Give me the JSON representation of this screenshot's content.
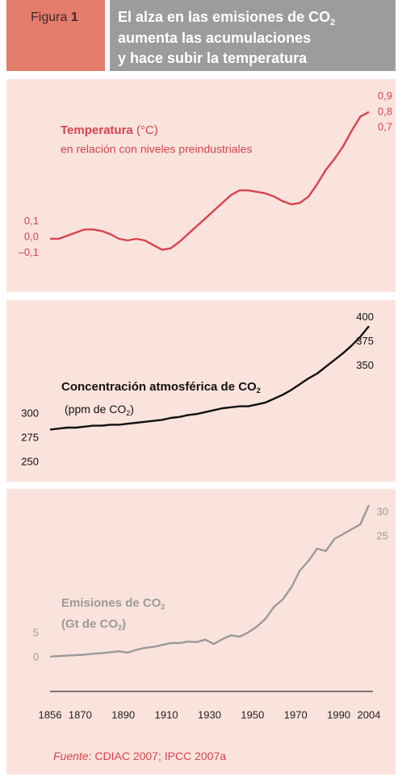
{
  "header": {
    "label": "Figura",
    "number": "1",
    "title": {
      "line1": "El alza en las emisiones de CO",
      "line1_sub": "2",
      "line2": "aumenta las acumulaciones",
      "line3": "y hace subir la temperatura"
    }
  },
  "source": {
    "label": "Fuente:",
    "text": "CDIAC 2007; IPCC 2007a"
  },
  "chart_data": [
    {
      "type": "line",
      "label": "Temperatura",
      "unit": "(°C)",
      "note": "en relación con niveles preindustriales",
      "color": "#d8434e",
      "x": [
        1856,
        1860,
        1864,
        1868,
        1872,
        1876,
        1880,
        1884,
        1888,
        1892,
        1896,
        1900,
        1904,
        1908,
        1912,
        1916,
        1920,
        1924,
        1928,
        1932,
        1936,
        1940,
        1944,
        1948,
        1952,
        1956,
        1960,
        1964,
        1968,
        1972,
        1976,
        1980,
        1984,
        1988,
        1992,
        1996,
        2000,
        2004
      ],
      "values": [
        -0.01,
        -0.01,
        0.01,
        0.03,
        0.05,
        0.05,
        0.04,
        0.02,
        -0.01,
        -0.02,
        -0.01,
        -0.02,
        -0.05,
        -0.08,
        -0.07,
        -0.03,
        0.02,
        0.07,
        0.12,
        0.17,
        0.22,
        0.27,
        0.3,
        0.3,
        0.29,
        0.28,
        0.26,
        0.23,
        0.21,
        0.22,
        0.26,
        0.34,
        0.43,
        0.5,
        0.58,
        0.68,
        0.77,
        0.8
      ],
      "xlim": [
        1856,
        2004
      ],
      "ylim": [
        -0.35,
        1.0
      ],
      "yticks": [
        {
          "value": 0.1,
          "label": "0,1"
        },
        {
          "value": 0.0,
          "label": "0,0"
        },
        {
          "value": -0.1,
          "label": "–0,1"
        }
      ],
      "y2lim": [
        -0.35,
        1.0
      ],
      "y2ticks": [
        {
          "value": 0.9,
          "label": "0,9"
        },
        {
          "value": 0.8,
          "label": "0,8"
        },
        {
          "value": 0.7,
          "label": "0,7"
        }
      ]
    },
    {
      "type": "line",
      "label": "Concentración atmosférica de CO",
      "label_sub": "2",
      "unit": "(ppm de CO",
      "unit_sub": "2",
      "unit_close": ")",
      "color": "#111111",
      "x": [
        1856,
        1860,
        1864,
        1868,
        1872,
        1876,
        1880,
        1884,
        1888,
        1892,
        1896,
        1900,
        1904,
        1908,
        1912,
        1916,
        1920,
        1924,
        1928,
        1932,
        1936,
        1940,
        1944,
        1948,
        1952,
        1956,
        1960,
        1964,
        1968,
        1972,
        1976,
        1980,
        1984,
        1988,
        1992,
        1996,
        2000,
        2004
      ],
      "values": [
        284,
        285,
        286,
        286,
        287,
        288,
        288,
        289,
        289,
        290,
        291,
        292,
        293,
        294,
        296,
        297,
        299,
        300,
        302,
        304,
        306,
        307,
        308,
        308,
        310,
        312,
        316,
        320,
        325,
        331,
        337,
        342,
        349,
        356,
        363,
        371,
        380,
        391
      ],
      "xlim": [
        1856,
        2004
      ],
      "ylim": [
        230,
        418
      ],
      "yticks": [
        300,
        275,
        250
      ],
      "y2lim": [
        230,
        418
      ],
      "y2ticks": [
        400,
        375,
        350
      ]
    },
    {
      "type": "line",
      "label": "Emisiones de CO",
      "label_sub": "2",
      "unit": "(Gt de CO",
      "unit_sub": "2",
      "unit_close": ")",
      "color": "#9a9a9a",
      "x": [
        1856,
        1860,
        1864,
        1868,
        1872,
        1876,
        1880,
        1884,
        1888,
        1892,
        1896,
        1900,
        1904,
        1908,
        1912,
        1916,
        1920,
        1924,
        1928,
        1932,
        1936,
        1940,
        1944,
        1948,
        1952,
        1956,
        1960,
        1964,
        1968,
        1972,
        1976,
        1980,
        1984,
        1988,
        1992,
        1996,
        2000,
        2004
      ],
      "values": [
        0.2,
        0.3,
        0.4,
        0.5,
        0.6,
        0.8,
        0.9,
        1.1,
        1.3,
        1.0,
        1.6,
        2.0,
        2.2,
        2.6,
        3.0,
        3.0,
        3.3,
        3.2,
        3.7,
        2.8,
        3.8,
        4.6,
        4.3,
        5.2,
        6.4,
        8.0,
        10.5,
        12.0,
        14.5,
        18.0,
        20.0,
        22.5,
        22.0,
        24.5,
        25.5,
        26.5,
        27.5,
        31.5
      ],
      "xlim": [
        1856,
        2004
      ],
      "xticks": [
        1856,
        1870,
        1890,
        1910,
        1930,
        1950,
        1970,
        1990,
        2004
      ],
      "ylim": [
        -7,
        35
      ],
      "yticks": [
        5,
        0
      ],
      "y2lim": [
        -7,
        35
      ],
      "y2ticks": [
        30,
        25
      ]
    }
  ]
}
